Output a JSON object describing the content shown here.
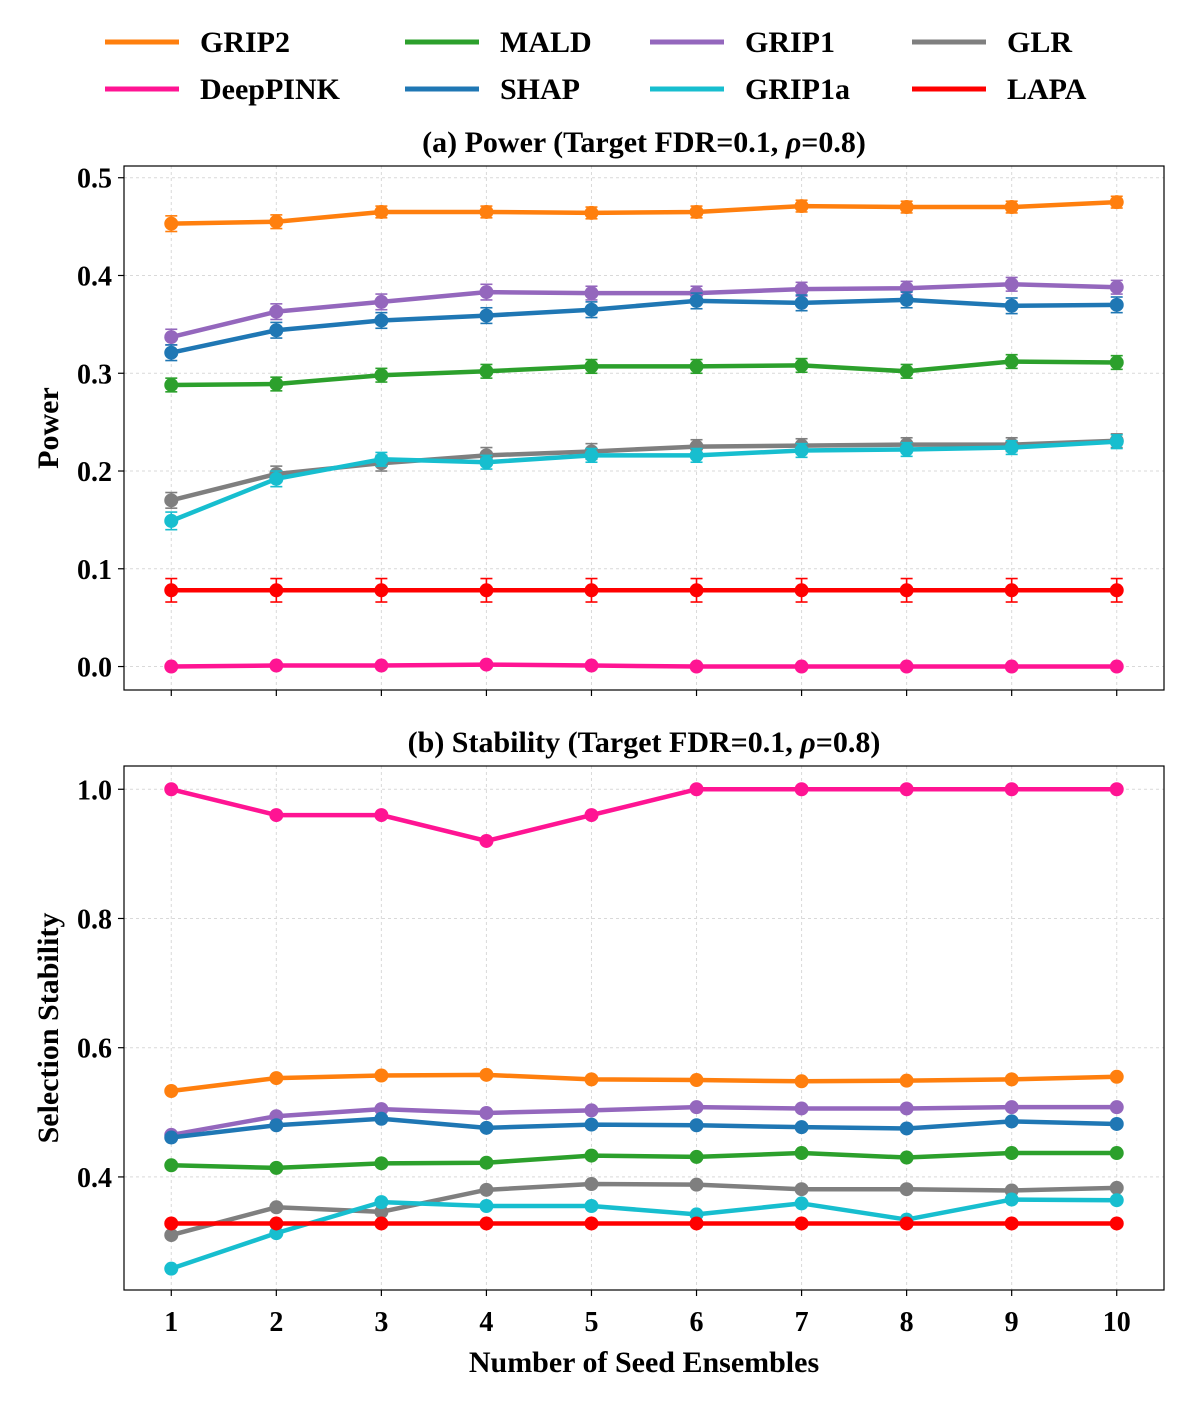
{
  "legend": [
    {
      "name": "GRIP2",
      "color": "#ff7f0e"
    },
    {
      "name": "MALD",
      "color": "#2ca02c"
    },
    {
      "name": "GRIP1",
      "color": "#9467bd"
    },
    {
      "name": "GLR",
      "color": "#7f7f7f"
    },
    {
      "name": "DeepPINK",
      "color": "#ff1493"
    },
    {
      "name": "SHAP",
      "color": "#1f77b4"
    },
    {
      "name": "GRIP1a",
      "color": "#17becf"
    },
    {
      "name": "LAPA",
      "color": "#ff0000"
    }
  ],
  "chart_data": [
    {
      "type": "line",
      "title_prefix": "(a) Power (Target FDR=0.1, ",
      "title_symbol": "ρ",
      "title_suffix": "=0.8)",
      "xlabel": "",
      "ylabel": "Power",
      "x": [
        1,
        2,
        3,
        4,
        5,
        6,
        7,
        8,
        9,
        10
      ],
      "xlim": [
        0.55,
        10.45
      ],
      "ylim": [
        -0.024,
        0.512
      ],
      "yticks": [
        0.0,
        0.1,
        0.2,
        0.3,
        0.4,
        0.5
      ],
      "yticklabels": [
        "0.0",
        "0.1",
        "0.2",
        "0.3",
        "0.4",
        "0.5"
      ],
      "grid": true,
      "series": [
        {
          "name": "GRIP2",
          "color": "#ff7f0e",
          "values": [
            0.453,
            0.455,
            0.465,
            0.465,
            0.464,
            0.465,
            0.471,
            0.47,
            0.47,
            0.475
          ],
          "error": [
            0.008,
            0.007,
            0.006,
            0.006,
            0.006,
            0.006,
            0.006,
            0.006,
            0.006,
            0.006
          ]
        },
        {
          "name": "GRIP1",
          "color": "#9467bd",
          "values": [
            0.337,
            0.363,
            0.373,
            0.383,
            0.382,
            0.382,
            0.386,
            0.387,
            0.391,
            0.388
          ],
          "error": [
            0.008,
            0.008,
            0.008,
            0.008,
            0.007,
            0.007,
            0.007,
            0.007,
            0.007,
            0.007
          ]
        },
        {
          "name": "SHAP",
          "color": "#1f77b4",
          "values": [
            0.321,
            0.344,
            0.354,
            0.359,
            0.365,
            0.374,
            0.372,
            0.375,
            0.369,
            0.37
          ],
          "error": [
            0.008,
            0.008,
            0.008,
            0.008,
            0.008,
            0.008,
            0.008,
            0.008,
            0.008,
            0.008
          ]
        },
        {
          "name": "MALD",
          "color": "#2ca02c",
          "values": [
            0.288,
            0.289,
            0.298,
            0.302,
            0.307,
            0.307,
            0.308,
            0.302,
            0.312,
            0.311
          ],
          "error": [
            0.007,
            0.007,
            0.007,
            0.007,
            0.007,
            0.007,
            0.007,
            0.007,
            0.007,
            0.007
          ]
        },
        {
          "name": "GLR",
          "color": "#7f7f7f",
          "values": [
            0.17,
            0.197,
            0.208,
            0.216,
            0.22,
            0.225,
            0.226,
            0.227,
            0.227,
            0.231
          ],
          "error": [
            0.008,
            0.008,
            0.008,
            0.008,
            0.008,
            0.007,
            0.007,
            0.007,
            0.007,
            0.007
          ]
        },
        {
          "name": "GRIP1a",
          "color": "#17becf",
          "values": [
            0.149,
            0.192,
            0.212,
            0.209,
            0.216,
            0.216,
            0.221,
            0.222,
            0.224,
            0.23
          ],
          "error": [
            0.009,
            0.008,
            0.007,
            0.007,
            0.007,
            0.007,
            0.007,
            0.007,
            0.007,
            0.007
          ]
        },
        {
          "name": "LAPA",
          "color": "#ff0000",
          "values": [
            0.078,
            0.078,
            0.078,
            0.078,
            0.078,
            0.078,
            0.078,
            0.078,
            0.078,
            0.078
          ],
          "error": [
            0.012,
            0.012,
            0.012,
            0.012,
            0.012,
            0.012,
            0.012,
            0.012,
            0.012,
            0.012
          ]
        },
        {
          "name": "DeepPINK",
          "color": "#ff1493",
          "values": [
            0.0,
            0.001,
            0.001,
            0.002,
            0.001,
            0.0,
            0.0,
            0.0,
            0.0,
            0.0
          ],
          "error": [
            0.001,
            0.001,
            0.001,
            0.001,
            0.001,
            0.001,
            0.001,
            0.001,
            0.001,
            0.001
          ]
        }
      ]
    },
    {
      "type": "line",
      "title_prefix": "(b) Stability (Target FDR=0.1, ",
      "title_symbol": "ρ",
      "title_suffix": "=0.8)",
      "xlabel": "Number of Seed Ensembles",
      "ylabel": "Selection Stability",
      "x": [
        1,
        2,
        3,
        4,
        5,
        6,
        7,
        8,
        9,
        10
      ],
      "xticklabels": [
        "1",
        "2",
        "3",
        "4",
        "5",
        "6",
        "7",
        "8",
        "9",
        "10"
      ],
      "xlim": [
        0.55,
        10.45
      ],
      "ylim": [
        0.225,
        1.036
      ],
      "yticks": [
        0.4,
        0.6,
        0.8,
        1.0
      ],
      "yticklabels": [
        "0.4",
        "0.6",
        "0.8",
        "1.0"
      ],
      "grid": true,
      "series": [
        {
          "name": "DeepPINK",
          "color": "#ff1493",
          "values": [
            1.0,
            0.96,
            0.96,
            0.92,
            0.96,
            1.0,
            1.0,
            1.0,
            1.0,
            1.0
          ]
        },
        {
          "name": "GRIP2",
          "color": "#ff7f0e",
          "values": [
            0.533,
            0.553,
            0.557,
            0.558,
            0.551,
            0.55,
            0.548,
            0.549,
            0.551,
            0.555
          ]
        },
        {
          "name": "GRIP1",
          "color": "#9467bd",
          "values": [
            0.465,
            0.494,
            0.505,
            0.499,
            0.503,
            0.508,
            0.506,
            0.506,
            0.508,
            0.508
          ]
        },
        {
          "name": "SHAP",
          "color": "#1f77b4",
          "values": [
            0.461,
            0.48,
            0.49,
            0.476,
            0.481,
            0.48,
            0.477,
            0.475,
            0.486,
            0.482
          ]
        },
        {
          "name": "MALD",
          "color": "#2ca02c",
          "values": [
            0.418,
            0.414,
            0.421,
            0.422,
            0.433,
            0.431,
            0.437,
            0.43,
            0.437,
            0.437
          ]
        },
        {
          "name": "GLR",
          "color": "#7f7f7f",
          "values": [
            0.31,
            0.353,
            0.346,
            0.38,
            0.389,
            0.388,
            0.381,
            0.381,
            0.379,
            0.383
          ]
        },
        {
          "name": "GRIP1a",
          "color": "#17becf",
          "values": [
            0.258,
            0.313,
            0.361,
            0.355,
            0.355,
            0.342,
            0.359,
            0.334,
            0.365,
            0.364
          ]
        },
        {
          "name": "LAPA",
          "color": "#ff0000",
          "values": [
            0.328,
            0.328,
            0.328,
            0.328,
            0.328,
            0.328,
            0.328,
            0.328,
            0.328,
            0.328
          ]
        }
      ]
    }
  ]
}
